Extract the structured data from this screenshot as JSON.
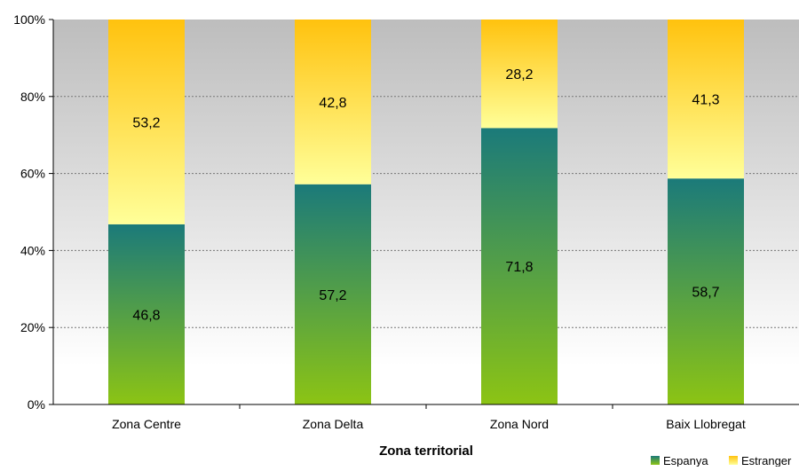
{
  "chart_data": {
    "type": "bar",
    "stacked": true,
    "categories": [
      "Zona Centre",
      "Zona Delta",
      "Zona Nord",
      "Baix Llobregat"
    ],
    "series": [
      {
        "name": "Espanya",
        "values": [
          46.8,
          57.2,
          71.8,
          58.7
        ],
        "labels": [
          "46,8",
          "57,2",
          "71,8",
          "58,7"
        ]
      },
      {
        "name": "Estranger",
        "values": [
          53.2,
          42.8,
          28.2,
          41.3
        ],
        "labels": [
          "53,2",
          "42,8",
          "28,2",
          "41,3"
        ]
      }
    ],
    "xlabel": "Zona territorial",
    "ylabel": "",
    "ylim": [
      0,
      100
    ],
    "yticks": [
      "0%",
      "20%",
      "40%",
      "60%",
      "80%",
      "100%"
    ],
    "grid": true,
    "legend_position": "bottom-right",
    "colors": {
      "espanya_top": "#1b7a7a",
      "espanya_bottom": "#8cc414",
      "estranger_top": "#ffc20e",
      "estranger_bottom": "#ffff99",
      "plot_bg_top": "#bdbdbd",
      "plot_bg_bottom": "#ffffff",
      "gridline": "#777777"
    }
  }
}
